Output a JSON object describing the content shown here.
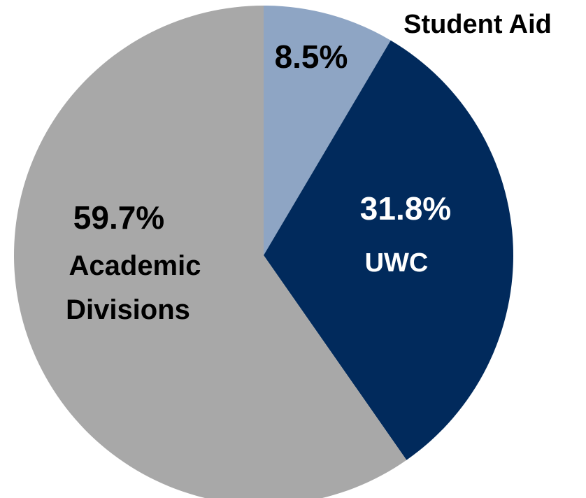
{
  "chart_data": {
    "type": "pie",
    "categories": [
      "Student Aid",
      "UWC",
      "Academic Divisions"
    ],
    "values": [
      8.5,
      31.8,
      59.7
    ],
    "value_labels": [
      "8.5%",
      "31.8%",
      "59.7%"
    ],
    "colors": [
      "#8ea5c4",
      "#012a5c",
      "#a8a8a8"
    ]
  }
}
